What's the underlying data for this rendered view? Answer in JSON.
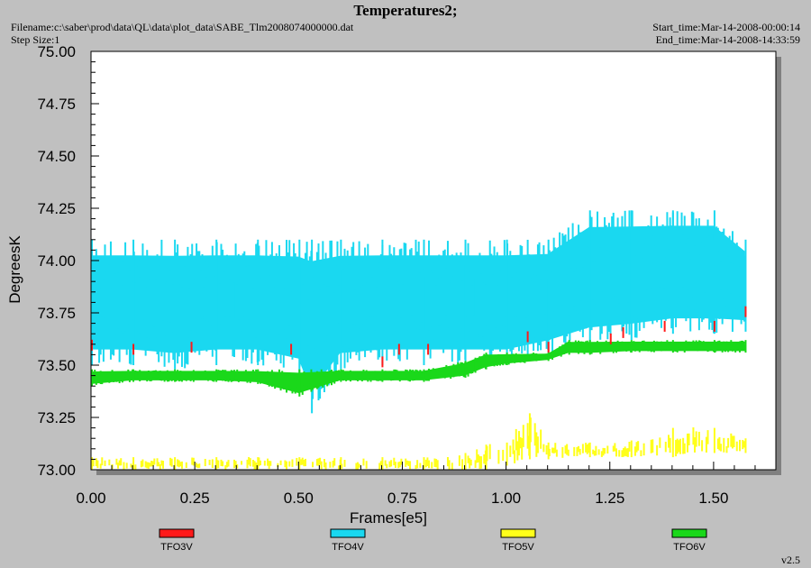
{
  "header": {
    "title": "Temperatures2;",
    "filename": "Filename:c:\\saber\\prod\\data\\QL\\data\\plot_data\\SABE_Tlm2008074000000.dat",
    "step_size": "Step Size:1",
    "start_time": "Start_time:Mar-14-2008-00:00:14",
    "end_time": "End_time:Mar-14-2008-14:33:59"
  },
  "version": "v2.5",
  "chart_data": {
    "type": "line",
    "title": "Temperatures2;",
    "xlabel": "Frames[e5]",
    "ylabel": "DegreesK",
    "xlim": [
      0,
      1.65
    ],
    "ylim": [
      73.0,
      75.0
    ],
    "x_ticks": [
      "0.00",
      "0.25",
      "0.50",
      "0.75",
      "1.00",
      "1.25",
      "1.50"
    ],
    "y_ticks": [
      "73.00",
      "73.25",
      "73.50",
      "73.75",
      "74.00",
      "74.25",
      "74.50",
      "74.75",
      "75.00"
    ],
    "legend_position": "bottom",
    "series": [
      {
        "name": "TFO3V",
        "color": "#ff1a1a",
        "x": [
          0.0,
          0.1,
          0.24,
          0.48,
          0.7,
          0.74,
          0.81,
          1.05,
          1.1,
          1.25,
          1.28,
          1.38,
          1.5,
          1.575
        ],
        "y": [
          73.6,
          73.58,
          73.59,
          73.58,
          73.52,
          73.58,
          73.58,
          73.64,
          73.59,
          73.63,
          73.66,
          73.69,
          73.69,
          73.76
        ]
      },
      {
        "name": "TFO4V",
        "color": "#1ad8f0",
        "x": [
          0.0,
          0.1,
          0.2,
          0.3,
          0.4,
          0.5,
          0.53,
          0.6,
          0.7,
          0.8,
          0.9,
          1.0,
          1.1,
          1.2,
          1.3,
          1.4,
          1.5,
          1.575
        ],
        "y_min": [
          73.5,
          73.5,
          73.48,
          73.5,
          73.5,
          73.45,
          73.27,
          73.48,
          73.5,
          73.5,
          73.5,
          73.5,
          73.55,
          73.6,
          73.62,
          73.65,
          73.65,
          73.66
        ],
        "y_max": [
          74.1,
          74.1,
          74.1,
          74.1,
          74.1,
          74.1,
          74.1,
          74.1,
          74.1,
          74.1,
          74.1,
          74.1,
          74.1,
          74.24,
          74.24,
          74.24,
          74.24,
          74.1
        ]
      },
      {
        "name": "TFO5V",
        "color": "#ffff1a",
        "x": [
          0.0,
          0.1,
          0.2,
          0.3,
          0.4,
          0.5,
          0.6,
          0.7,
          0.8,
          0.9,
          0.95,
          1.0,
          1.055,
          1.1,
          1.2,
          1.3,
          1.4,
          1.5,
          1.575
        ],
        "y_min": [
          73.0,
          73.0,
          73.0,
          73.0,
          73.0,
          73.0,
          73.0,
          73.0,
          73.0,
          73.0,
          73.0,
          73.02,
          73.05,
          73.05,
          73.06,
          73.06,
          73.06,
          73.08,
          73.08
        ],
        "y_max": [
          73.06,
          73.06,
          73.06,
          73.06,
          73.06,
          73.06,
          73.06,
          73.06,
          73.06,
          73.08,
          73.12,
          73.13,
          73.27,
          73.13,
          73.13,
          73.14,
          73.2,
          73.2,
          73.15
        ]
      },
      {
        "name": "TFO6V",
        "color": "#1ad81a",
        "x": [
          0.0,
          0.1,
          0.2,
          0.3,
          0.4,
          0.5,
          0.6,
          0.7,
          0.8,
          0.9,
          0.95,
          1.0,
          1.1,
          1.15,
          1.2,
          1.3,
          1.4,
          1.5,
          1.575
        ],
        "y_min": [
          73.4,
          73.42,
          73.42,
          73.42,
          73.41,
          73.35,
          73.42,
          73.42,
          73.42,
          73.44,
          73.48,
          73.5,
          73.52,
          73.55,
          73.55,
          73.56,
          73.56,
          73.56,
          73.56
        ],
        "y_max": [
          73.48,
          73.48,
          73.48,
          73.48,
          73.48,
          73.48,
          73.48,
          73.48,
          73.48,
          73.52,
          73.56,
          73.56,
          73.56,
          73.62,
          73.62,
          73.62,
          73.62,
          73.62,
          73.62
        ]
      }
    ]
  }
}
